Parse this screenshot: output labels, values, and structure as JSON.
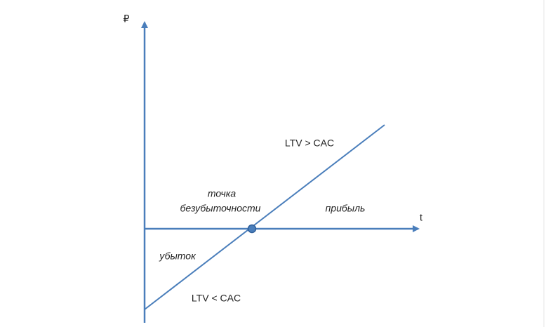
{
  "axes": {
    "y_label": "₽",
    "x_label": "t"
  },
  "labels": {
    "upper_condition": "LTV > CAC",
    "lower_condition": "LTV < CAC",
    "break_even_line1": "точка",
    "break_even_line2": "безубыточности",
    "profit": "прибыль",
    "loss": "убыток"
  }
}
